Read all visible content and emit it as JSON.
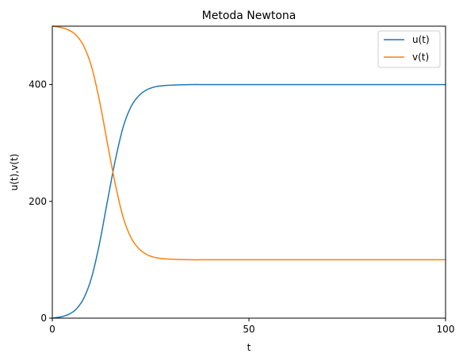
{
  "chart_data": {
    "type": "line",
    "title": "Metoda Newtona",
    "xlabel": "t",
    "ylabel": "u(t),v(t)",
    "xlim": [
      0,
      100
    ],
    "ylim": [
      0,
      500
    ],
    "xticks": [
      0,
      50,
      100
    ],
    "yticks": [
      0,
      200,
      400
    ],
    "xtick_labels": [
      "0",
      "50",
      "100"
    ],
    "ytick_labels": [
      "0",
      "200",
      "400"
    ],
    "grid": false,
    "legend_position": "top-right",
    "series": [
      {
        "name": "u(t)",
        "color": "#1f77b4",
        "x": [
          0,
          2,
          4,
          6,
          8,
          10,
          12,
          14,
          16,
          18,
          20,
          22,
          24,
          26,
          28,
          30,
          35,
          40,
          50,
          60,
          70,
          80,
          90,
          100
        ],
        "y": [
          0,
          2,
          6,
          15,
          34,
          70,
          128,
          200,
          270,
          327,
          362,
          381,
          391,
          396,
          398,
          399,
          400,
          400,
          400,
          400,
          400,
          400,
          400,
          400
        ]
      },
      {
        "name": "v(t)",
        "color": "#ff7f0e",
        "x": [
          0,
          2,
          4,
          6,
          8,
          10,
          12,
          14,
          16,
          18,
          20,
          22,
          24,
          26,
          28,
          30,
          35,
          40,
          50,
          60,
          70,
          80,
          90,
          100
        ],
        "y": [
          500,
          498,
          494,
          485,
          466,
          430,
          372,
          300,
          230,
          173,
          138,
          119,
          109,
          104,
          102,
          101,
          100,
          100,
          100,
          100,
          100,
          100,
          100,
          100
        ]
      }
    ]
  }
}
